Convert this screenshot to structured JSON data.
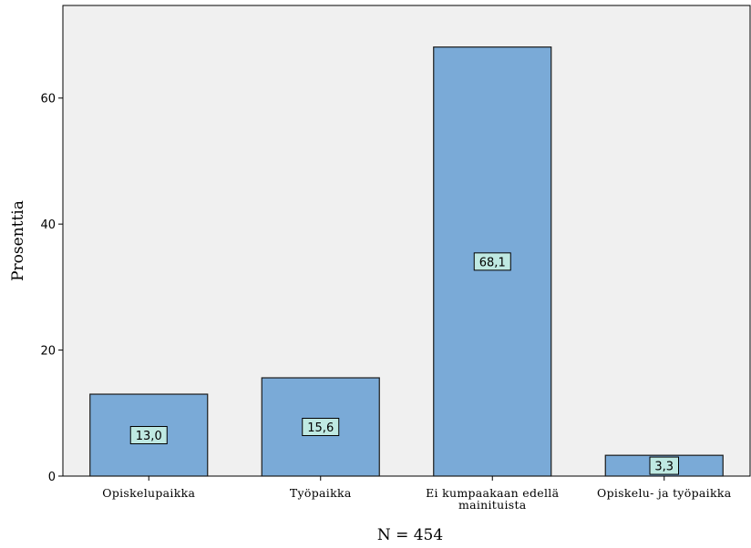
{
  "chart_data": {
    "type": "bar",
    "categories": [
      "Opiskelupaikka",
      "Työpaikka",
      "Ei kumpaakaan edellä mainituista",
      "Opiskelu- ja työpaikka"
    ],
    "category_lines": [
      [
        "Opiskelupaikka"
      ],
      [
        "Työpaikka"
      ],
      [
        "Ei kumpaakaan edellä",
        "mainituista"
      ],
      [
        "Opiskelu- ja työpaikka"
      ]
    ],
    "values": [
      13.0,
      15.6,
      68.1,
      3.3
    ],
    "data_labels": [
      "13,0",
      "15,6",
      "68,1",
      "3,3"
    ],
    "title": "",
    "xlabel": "N = 454",
    "ylabel": "Prosenttia",
    "ylim": [
      0,
      74.7
    ],
    "yticks": [
      0,
      20,
      40,
      60
    ],
    "ytick_labels": [
      "0",
      "20",
      "40",
      "60"
    ],
    "grid": false,
    "legend": null,
    "colors": {
      "plot_background": "#f0f0f0",
      "bar_fill": "#7aaad7",
      "bar_stroke": "#1a1a1a",
      "label_fill": "#bfe9e2",
      "axis": "#000000"
    }
  }
}
